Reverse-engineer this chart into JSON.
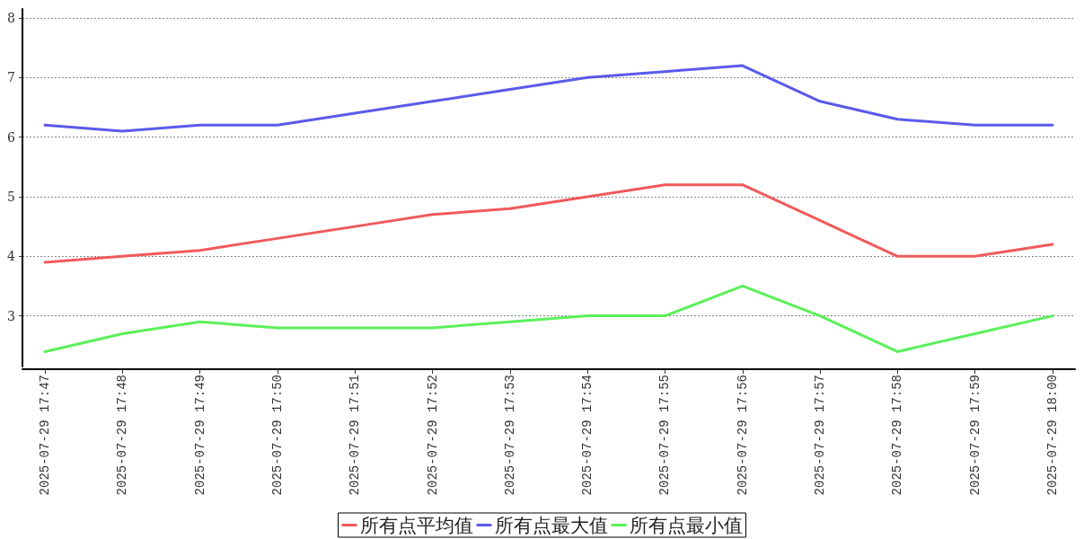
{
  "chart_data": {
    "type": "line",
    "categories": [
      "2025-07-29 17:47",
      "2025-07-29 17:48",
      "2025-07-29 17:49",
      "2025-07-29 17:50",
      "2025-07-29 17:51",
      "2025-07-29 17:52",
      "2025-07-29 17:53",
      "2025-07-29 17:54",
      "2025-07-29 17:55",
      "2025-07-29 17:56",
      "2025-07-29 17:57",
      "2025-07-29 17:58",
      "2025-07-29 17:59",
      "2025-07-29 18:00"
    ],
    "series": [
      {
        "name": "所有点平均值",
        "color": "#f05a5a",
        "values": [
          3.9,
          4.0,
          4.1,
          4.3,
          4.5,
          4.7,
          4.8,
          5.0,
          5.2,
          5.2,
          4.6,
          4.0,
          4.0,
          4.2
        ]
      },
      {
        "name": "所有点最大值",
        "color": "#5a5aeb",
        "values": [
          6.2,
          6.1,
          6.2,
          6.2,
          6.4,
          6.6,
          6.8,
          7.0,
          7.1,
          7.2,
          6.6,
          6.3,
          6.2,
          6.2
        ]
      },
      {
        "name": "所有点最小值",
        "color": "#5af05a",
        "values": [
          2.4,
          2.7,
          2.9,
          2.8,
          2.8,
          2.8,
          2.9,
          3.0,
          3.0,
          3.5,
          3.0,
          2.4,
          2.7,
          3.0
        ]
      }
    ],
    "ylim": [
      2.15,
      8.15
    ],
    "yticks": [
      3,
      4,
      5,
      6,
      7,
      8
    ],
    "grid": "y",
    "legend": "bottom",
    "marker": "none",
    "line_style": "solid"
  }
}
